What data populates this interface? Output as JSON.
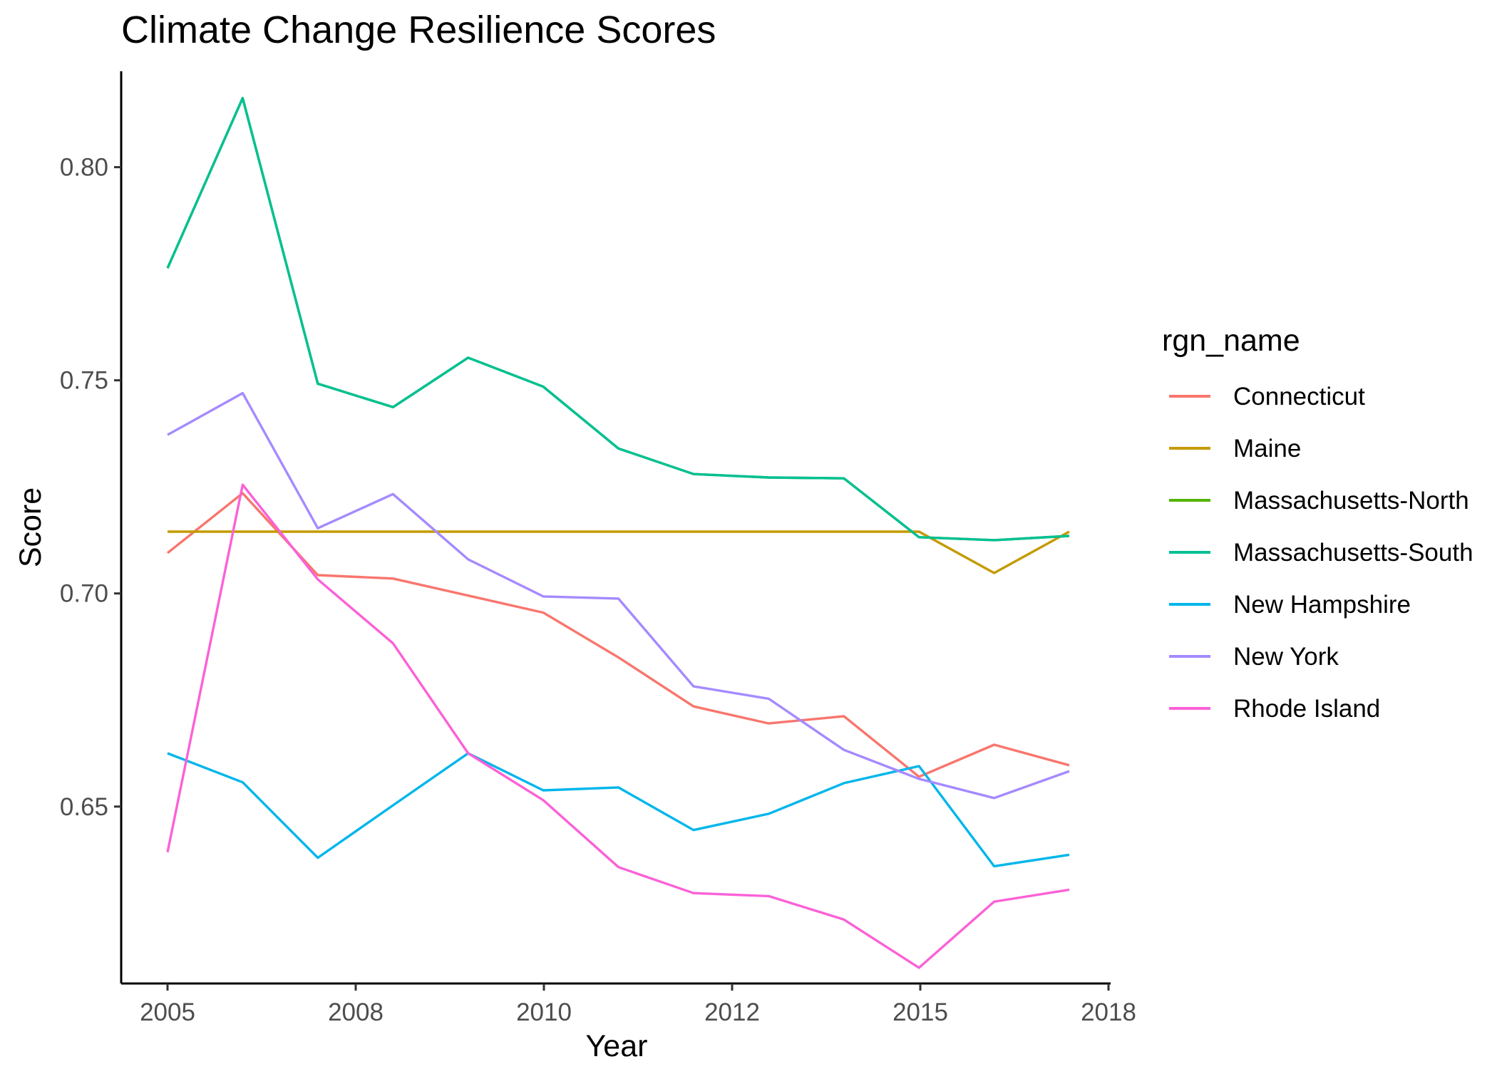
{
  "chart_data": {
    "type": "line",
    "title": "Climate Change Resilience Scores",
    "xlabel": "Year",
    "ylabel": "Score",
    "x": [
      2005,
      2006,
      2007,
      2008,
      2009,
      2010,
      2011,
      2012,
      2013,
      2014,
      2015,
      2016,
      2017
    ],
    "x_tick_labels": [
      "2005",
      "2008",
      "2010",
      "2012",
      "2015",
      "2018"
    ],
    "y_ticks": [
      0.65,
      0.7,
      0.75,
      0.8
    ],
    "y_tick_labels": [
      "0.65",
      "0.70",
      "0.75",
      "0.80"
    ],
    "ylim": [
      0.6085,
      0.8225
    ],
    "grid": false,
    "legend_title": "rgn_name",
    "legend_position": "right",
    "series": [
      {
        "name": "Connecticut",
        "color": "#F8766D",
        "values": [
          0.7095,
          0.7235,
          0.7043,
          0.7035,
          0.6995,
          0.6955,
          0.685,
          0.6735,
          0.6695,
          0.6712,
          0.657,
          0.6645,
          0.6597
        ]
      },
      {
        "name": "Maine",
        "color": "#C49A00",
        "values": [
          0.7145,
          0.7145,
          0.7145,
          0.7145,
          0.7145,
          0.7145,
          0.7145,
          0.7145,
          0.7145,
          0.7145,
          0.7145,
          0.7048,
          0.7145
        ]
      },
      {
        "name": "Massachusetts-North",
        "color": "#53B400",
        "values": [
          0.7763,
          0.8162,
          0.7492,
          0.7437,
          0.7553,
          0.7485,
          0.734,
          0.728,
          0.7272,
          0.727,
          0.7132,
          0.7125,
          0.7135
        ]
      },
      {
        "name": "Massachusetts-South",
        "color": "#00C094",
        "values": [
          0.7763,
          0.8162,
          0.7492,
          0.7437,
          0.7553,
          0.7485,
          0.734,
          0.728,
          0.7272,
          0.727,
          0.7132,
          0.7125,
          0.7135
        ]
      },
      {
        "name": "New Hampshire",
        "color": "#00B6EB",
        "values": [
          0.6625,
          0.6557,
          0.638,
          0.6503,
          0.6625,
          0.6538,
          0.6545,
          0.6445,
          0.6483,
          0.6555,
          0.6595,
          0.636,
          0.6387
        ]
      },
      {
        "name": "New York",
        "color": "#A58AFF",
        "values": [
          0.7372,
          0.747,
          0.7153,
          0.7233,
          0.708,
          0.6993,
          0.6988,
          0.6782,
          0.6753,
          0.6633,
          0.6565,
          0.652,
          0.6583
        ]
      },
      {
        "name": "Rhode Island",
        "color": "#FB61D7",
        "values": [
          0.6393,
          0.7255,
          0.7033,
          0.6883,
          0.6625,
          0.6515,
          0.6358,
          0.6297,
          0.629,
          0.6235,
          0.6122,
          0.6277,
          0.6305
        ]
      }
    ]
  }
}
